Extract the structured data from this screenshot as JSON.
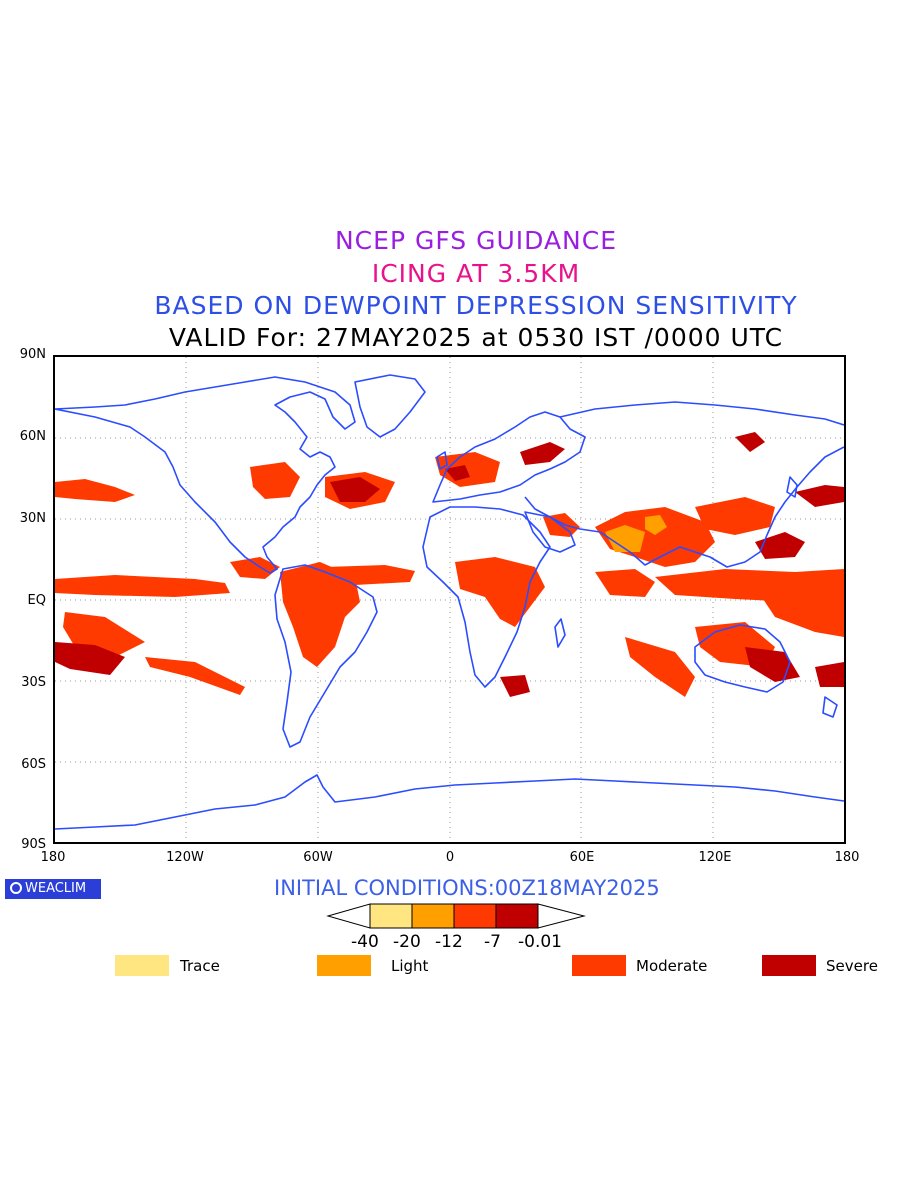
{
  "titles": {
    "line1": "NCEP GFS GUIDANCE",
    "line2": "ICING AT 3.5KM",
    "line3": "BASED ON DEWPOINT DEPRESSION SENSITIVITY",
    "line4": "VALID For: 27MAY2025 at 0530 IST /0000 UTC"
  },
  "axes": {
    "lat_labels": [
      "90N",
      "60N",
      "30N",
      "EQ",
      "30S",
      "60S",
      "90S"
    ],
    "lon_labels": [
      "180",
      "120W",
      "60W",
      "0",
      "60E",
      "120E",
      "180"
    ],
    "lat_range": [
      -90,
      90
    ],
    "lon_range": [
      -180,
      180
    ],
    "grid": "dotted, every 30 degrees"
  },
  "brand": {
    "label": "WEACLIM"
  },
  "initial_conditions": "INITIAL CONDITIONS:00Z18MAY2025",
  "colorbar": {
    "ticks": [
      "-40",
      "-20",
      "-12",
      "-7",
      "-0.01"
    ],
    "colors": [
      "#ffe680",
      "#ffa000",
      "#ff3a00",
      "#c00000"
    ]
  },
  "legend": [
    {
      "label": "Trace",
      "color": "#ffe680"
    },
    {
      "label": "Light",
      "color": "#ffa000"
    },
    {
      "label": "Moderate",
      "color": "#ff3a00"
    },
    {
      "label": "Severe",
      "color": "#c00000"
    }
  ],
  "colors": {
    "coastline": "#2b4cff",
    "moderate": "#ff3a00",
    "severe": "#c00000",
    "light": "#ffa000"
  }
}
